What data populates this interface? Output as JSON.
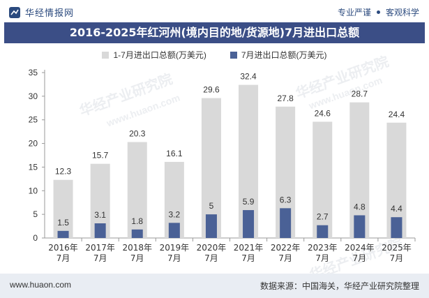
{
  "header": {
    "logo_text": "华经情报网",
    "tagline_left": "专业严谨",
    "tagline_right": "客观科学"
  },
  "colors": {
    "bar_total": "#d9d9d9",
    "bar_july": "#4a6196",
    "title_bg": "#3b4e86"
  },
  "chart_data": {
    "type": "bar",
    "title": "2016-2025年红河州(境内目的地/货源地)7月进出口总额",
    "categories": [
      "2016年\n7月",
      "2017年\n7月",
      "2018年\n7月",
      "2019年\n7月",
      "2020年\n7月",
      "2021年\n7月",
      "2022年\n7月",
      "2023年\n7月",
      "2024年\n7月",
      "2025年\n7月"
    ],
    "series": [
      {
        "name": "1-7月进出口总额(万美元)",
        "values": [
          12.3,
          15.7,
          20.3,
          16.1,
          29.6,
          32.4,
          27.8,
          24.6,
          28.7,
          24.4
        ]
      },
      {
        "name": "7月进出口总额(万美元)",
        "values": [
          1.5,
          3.1,
          1.8,
          3.2,
          5,
          5.9,
          6.3,
          2.7,
          4.8,
          4.4
        ]
      }
    ],
    "yticks": [
      "0",
      "5",
      "10",
      "15",
      "20",
      "25",
      "30",
      "35"
    ],
    "ylim": [
      0,
      35
    ],
    "legend_position": "top",
    "grid": false
  },
  "footer": {
    "website": "www.huaon.com",
    "source": "数据来源：中国海关，华经产业研究院整理"
  },
  "watermarks": {
    "text1": "华经产业研究院",
    "text2": "www.huaon.com"
  }
}
